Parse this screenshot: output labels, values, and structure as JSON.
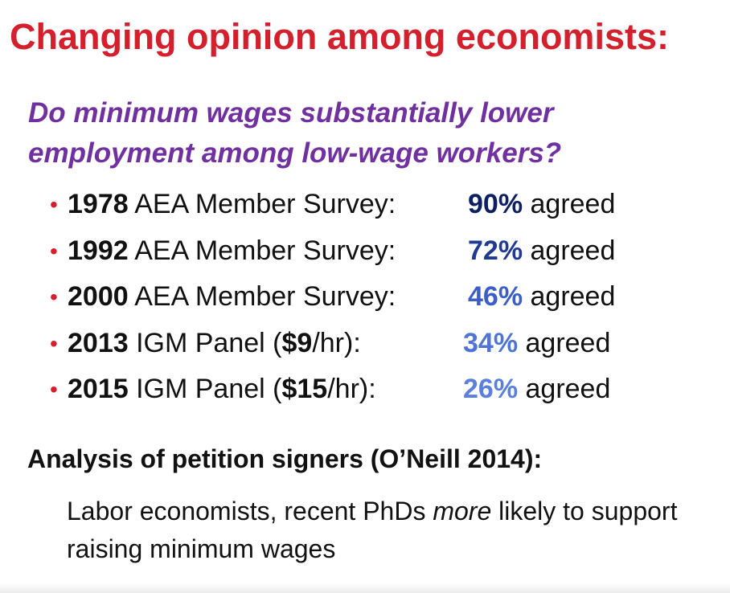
{
  "title": "Changing opinion among economists:",
  "question": "Do minimum wages substantially lower employment among low-wage workers?",
  "surveys": [
    {
      "year": "1978",
      "label": " AEA Member Survey:",
      "percent": "90%",
      "result": " agreed"
    },
    {
      "year": "1992",
      "label": " AEA Member Survey:",
      "percent": "72%",
      "result": " agreed"
    },
    {
      "year": "2000",
      "label": " AEA Member Survey:",
      "percent": "46%",
      "result": " agreed"
    },
    {
      "year": "2013",
      "label_before": " IGM Panel (",
      "wage": "$9",
      "label_after": "/hr):",
      "percent": "34%",
      "result": " agreed"
    },
    {
      "year": "2015",
      "label_before": " IGM Panel (",
      "wage": "$15",
      "label_after": "/hr):",
      "percent": "26%",
      "result": " agreed"
    }
  ],
  "subhead": "Analysis of petition signers (O’Neill 2014):",
  "finding": {
    "before": "Labor economists, recent PhDs ",
    "emphasis": "more",
    "after": " likely to support raising minimum wages"
  },
  "colors": {
    "title": "#d4202c",
    "question": "#7030a0",
    "bullet": "#d4202c",
    "percent_shades": [
      "#0d1f63",
      "#1f3a93",
      "#3c5ec9",
      "#4f74d6",
      "#5a80dc"
    ]
  }
}
